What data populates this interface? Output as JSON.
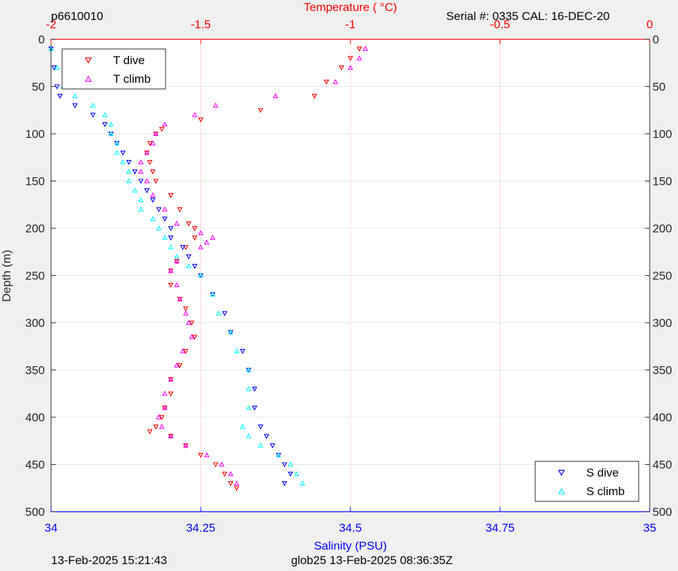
{
  "header": {
    "profile_id": "p6610010",
    "serial": "Serial #: 0335  CAL: 16-DEC-20"
  },
  "footer": {
    "left": "13-Feb-2025 15:21:43",
    "center": "glob25 13-Feb-2025 08:36:35Z"
  },
  "colors": {
    "t_dive": "#ff0000",
    "t_climb": "#ff00ff",
    "s_dive": "#0000ff",
    "s_climb": "#00ffff",
    "temp_axis": "#ff0000",
    "sal_axis": "#0000ff"
  },
  "chart_data": {
    "type": "scatter",
    "title": "",
    "grid": true,
    "y_axis": {
      "label": "Depth (m)",
      "range": [
        0,
        500
      ],
      "reversed": true,
      "ticks": [
        "0",
        "50",
        "100",
        "150",
        "200",
        "250",
        "300",
        "350",
        "400",
        "450",
        "500"
      ]
    },
    "x_axis_top": {
      "label": "Temperature (   °C)",
      "range": [
        -2,
        0
      ],
      "ticks": [
        "-2",
        "-1.5",
        "-1",
        "-0.5",
        "0"
      ]
    },
    "x_axis_bottom": {
      "label": "Salinity (PSU)",
      "range": [
        34,
        35
      ],
      "ticks": [
        "34",
        "34.25",
        "34.5",
        "34.75",
        "35"
      ]
    },
    "legend_top_left": [
      "T dive",
      "T climb"
    ],
    "legend_bottom_right": [
      "S dive",
      "S climb"
    ],
    "series": [
      {
        "name": "T dive",
        "axis": "temperature",
        "marker": "triangle-down",
        "depth": [
          10,
          20,
          30,
          45,
          60,
          75,
          85,
          95,
          100,
          110,
          120,
          130,
          140,
          150,
          165,
          180,
          195,
          200,
          210,
          220,
          235,
          245,
          260,
          275,
          285,
          300,
          315,
          330,
          345,
          360,
          375,
          390,
          400,
          410,
          415,
          420,
          430,
          440,
          450,
          460,
          470,
          475
        ],
        "value": [
          -0.97,
          -1.0,
          -1.03,
          -1.08,
          -1.12,
          -1.3,
          -1.5,
          -1.63,
          -1.65,
          -1.67,
          -1.68,
          -1.67,
          -1.66,
          -1.65,
          -1.6,
          -1.57,
          -1.54,
          -1.52,
          -1.52,
          -1.55,
          -1.58,
          -1.6,
          -1.6,
          -1.57,
          -1.55,
          -1.53,
          -1.52,
          -1.55,
          -1.57,
          -1.6,
          -1.6,
          -1.62,
          -1.63,
          -1.65,
          -1.67,
          -1.6,
          -1.55,
          -1.5,
          -1.45,
          -1.42,
          -1.4,
          -1.38
        ]
      },
      {
        "name": "T climb",
        "axis": "temperature",
        "marker": "triangle-up",
        "depth": [
          10,
          20,
          30,
          45,
          60,
          70,
          80,
          90,
          100,
          110,
          120,
          130,
          140,
          150,
          165,
          180,
          195,
          205,
          210,
          215,
          220,
          235,
          245,
          260,
          275,
          290,
          300,
          315,
          330,
          345,
          360,
          375,
          390,
          400,
          410,
          420,
          430,
          440,
          450,
          460,
          470
        ],
        "value": [
          -0.95,
          -0.97,
          -1.0,
          -1.05,
          -1.25,
          -1.45,
          -1.52,
          -1.62,
          -1.65,
          -1.66,
          -1.68,
          -1.7,
          -1.7,
          -1.68,
          -1.66,
          -1.62,
          -1.58,
          -1.5,
          -1.46,
          -1.48,
          -1.5,
          -1.58,
          -1.6,
          -1.58,
          -1.57,
          -1.55,
          -1.54,
          -1.53,
          -1.56,
          -1.58,
          -1.6,
          -1.62,
          -1.62,
          -1.64,
          -1.63,
          -1.6,
          -1.55,
          -1.48,
          -1.43,
          -1.4,
          -1.38
        ]
      },
      {
        "name": "S dive",
        "axis": "salinity",
        "marker": "triangle-down",
        "depth": [
          10,
          30,
          50,
          60,
          70,
          80,
          90,
          100,
          110,
          120,
          130,
          140,
          150,
          160,
          170,
          180,
          190,
          200,
          210,
          220,
          230,
          240,
          250,
          270,
          290,
          310,
          330,
          350,
          370,
          390,
          410,
          420,
          430,
          440,
          450,
          460,
          470
        ],
        "value": [
          34.0,
          34.005,
          34.01,
          34.015,
          34.04,
          34.07,
          34.09,
          34.1,
          34.11,
          34.12,
          34.13,
          34.14,
          34.15,
          34.16,
          34.17,
          34.18,
          34.19,
          34.2,
          34.2,
          34.22,
          34.23,
          34.24,
          34.25,
          34.27,
          34.29,
          34.3,
          34.32,
          34.33,
          34.34,
          34.34,
          34.35,
          34.36,
          34.37,
          34.38,
          34.39,
          34.4,
          34.39
        ]
      },
      {
        "name": "S climb",
        "axis": "salinity",
        "marker": "triangle-up",
        "depth": [
          10,
          30,
          50,
          60,
          70,
          80,
          90,
          100,
          110,
          120,
          130,
          140,
          150,
          160,
          170,
          180,
          190,
          200,
          210,
          220,
          230,
          240,
          250,
          270,
          290,
          310,
          330,
          350,
          370,
          390,
          410,
          420,
          430,
          440,
          450,
          460,
          470
        ],
        "value": [
          34.0,
          34.01,
          34.02,
          34.04,
          34.07,
          34.09,
          34.1,
          34.1,
          34.11,
          34.11,
          34.12,
          34.13,
          34.13,
          34.14,
          34.15,
          34.15,
          34.17,
          34.18,
          34.19,
          34.2,
          34.21,
          34.23,
          34.25,
          34.27,
          34.28,
          34.3,
          34.31,
          34.33,
          34.33,
          34.33,
          34.32,
          34.33,
          34.35,
          34.38,
          34.4,
          34.41,
          34.42
        ]
      }
    ]
  }
}
